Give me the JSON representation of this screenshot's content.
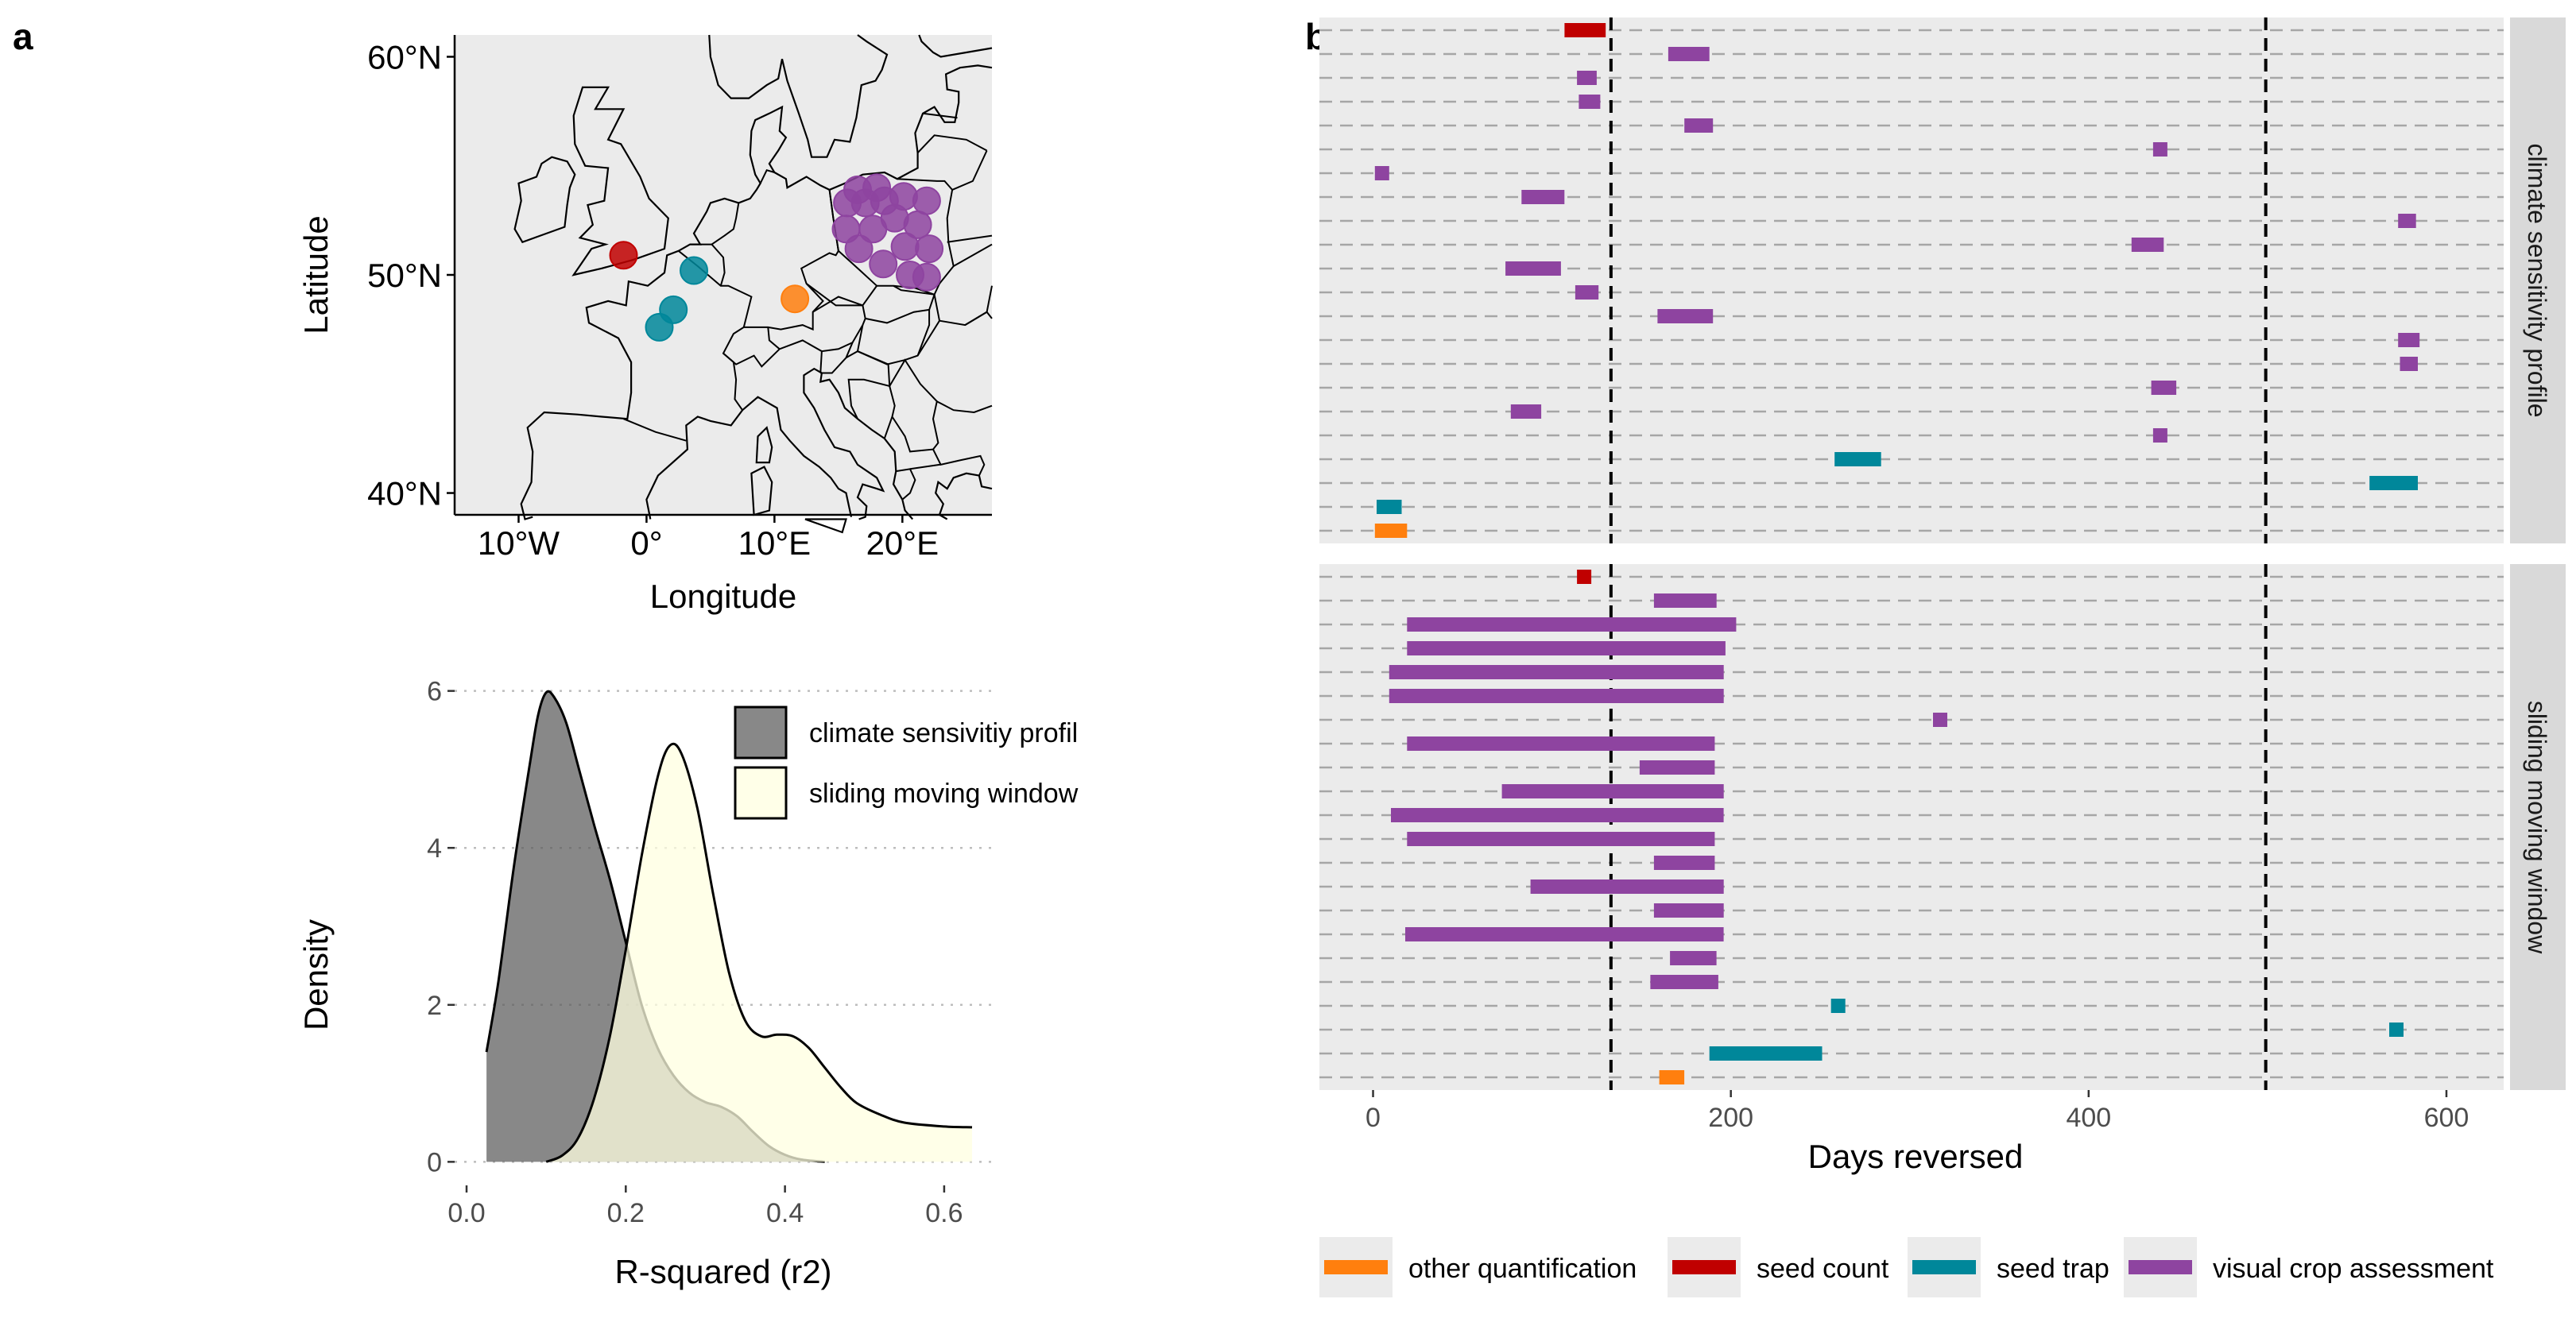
{
  "panels": {
    "a": "a",
    "b": "b"
  },
  "chart_data": [
    {
      "type": "scatter",
      "subtype": "map",
      "xlabel": "Longitude",
      "ylabel": "Latitude",
      "xlim": [
        -15,
        27
      ],
      "ylim": [
        39,
        61
      ],
      "xticks": [
        "10°W",
        "0°",
        "10°E",
        "20°E"
      ],
      "xtick_values": [
        -10,
        0,
        10,
        20
      ],
      "yticks": [
        "40°N",
        "50°N",
        "60°N"
      ],
      "ytick_values": [
        40,
        50,
        60
      ],
      "background_color": "#ebebeb",
      "points": [
        {
          "lon": -1.8,
          "lat": 50.9,
          "type": "seed count"
        },
        {
          "lon": 3.7,
          "lat": 50.2,
          "type": "seed trap"
        },
        {
          "lon": 2.1,
          "lat": 48.4,
          "type": "seed trap"
        },
        {
          "lon": 1.0,
          "lat": 47.6,
          "type": "seed trap"
        },
        {
          "lon": 11.6,
          "lat": 48.9,
          "type": "other quantification"
        },
        {
          "lon": 16.5,
          "lat": 53.9,
          "type": "visual crop assessment"
        },
        {
          "lon": 18.0,
          "lat": 54.0,
          "type": "visual crop assessment"
        },
        {
          "lon": 15.7,
          "lat": 53.3,
          "type": "visual crop assessment"
        },
        {
          "lon": 17.1,
          "lat": 53.3,
          "type": "visual crop assessment"
        },
        {
          "lon": 18.6,
          "lat": 53.4,
          "type": "visual crop assessment"
        },
        {
          "lon": 20.1,
          "lat": 53.6,
          "type": "visual crop assessment"
        },
        {
          "lon": 21.9,
          "lat": 53.4,
          "type": "visual crop assessment"
        },
        {
          "lon": 15.6,
          "lat": 52.1,
          "type": "visual crop assessment"
        },
        {
          "lon": 17.7,
          "lat": 52.1,
          "type": "visual crop assessment"
        },
        {
          "lon": 16.6,
          "lat": 51.2,
          "type": "visual crop assessment"
        },
        {
          "lon": 19.4,
          "lat": 52.6,
          "type": "visual crop assessment"
        },
        {
          "lon": 21.2,
          "lat": 52.3,
          "type": "visual crop assessment"
        },
        {
          "lon": 20.2,
          "lat": 51.3,
          "type": "visual crop assessment"
        },
        {
          "lon": 22.1,
          "lat": 51.2,
          "type": "visual crop assessment"
        },
        {
          "lon": 18.5,
          "lat": 50.5,
          "type": "visual crop assessment"
        },
        {
          "lon": 20.6,
          "lat": 50.0,
          "type": "visual crop assessment"
        },
        {
          "lon": 21.9,
          "lat": 49.9,
          "type": "visual crop assessment"
        }
      ]
    },
    {
      "type": "area",
      "subtype": "density",
      "xlabel": "R-squared (r2)",
      "ylabel": "Density",
      "xlim": [
        -0.015,
        0.66
      ],
      "ylim": [
        -0.3,
        6.3
      ],
      "xticks": [
        "0.0",
        "0.2",
        "0.4",
        "0.6"
      ],
      "xtick_values": [
        0.0,
        0.2,
        0.4,
        0.6
      ],
      "yticks": [
        "0",
        "2",
        "4",
        "6"
      ],
      "ytick_values": [
        0,
        2,
        4,
        6
      ],
      "legend_position": "top-right",
      "series": [
        {
          "name": "climate sensivitiy profil",
          "color": "#5a5a5a",
          "points": [
            [
              0.025,
              1.4
            ],
            [
              0.04,
              2.3
            ],
            [
              0.06,
              3.8
            ],
            [
              0.08,
              5.1
            ],
            [
              0.09,
              5.7
            ],
            [
              0.1,
              5.98
            ],
            [
              0.11,
              5.92
            ],
            [
              0.125,
              5.6
            ],
            [
              0.14,
              5.05
            ],
            [
              0.16,
              4.3
            ],
            [
              0.18,
              3.6
            ],
            [
              0.2,
              2.8
            ],
            [
              0.22,
              2.0
            ],
            [
              0.24,
              1.45
            ],
            [
              0.26,
              1.1
            ],
            [
              0.28,
              0.88
            ],
            [
              0.3,
              0.76
            ],
            [
              0.32,
              0.7
            ],
            [
              0.34,
              0.58
            ],
            [
              0.36,
              0.38
            ],
            [
              0.38,
              0.2
            ],
            [
              0.4,
              0.09
            ],
            [
              0.42,
              0.03
            ],
            [
              0.45,
              0.0
            ]
          ]
        },
        {
          "name": "sliding moving window",
          "color": "#ffffe0",
          "points": [
            [
              0.1,
              0.0
            ],
            [
              0.12,
              0.08
            ],
            [
              0.14,
              0.3
            ],
            [
              0.16,
              0.8
            ],
            [
              0.18,
              1.6
            ],
            [
              0.2,
              2.7
            ],
            [
              0.22,
              3.9
            ],
            [
              0.24,
              4.9
            ],
            [
              0.255,
              5.3
            ],
            [
              0.27,
              5.2
            ],
            [
              0.29,
              4.5
            ],
            [
              0.31,
              3.4
            ],
            [
              0.33,
              2.4
            ],
            [
              0.35,
              1.8
            ],
            [
              0.37,
              1.6
            ],
            [
              0.39,
              1.62
            ],
            [
              0.41,
              1.6
            ],
            [
              0.43,
              1.45
            ],
            [
              0.45,
              1.2
            ],
            [
              0.47,
              0.95
            ],
            [
              0.49,
              0.75
            ],
            [
              0.52,
              0.6
            ],
            [
              0.55,
              0.5
            ],
            [
              0.6,
              0.45
            ],
            [
              0.635,
              0.44
            ]
          ]
        }
      ]
    },
    {
      "type": "bar",
      "subtype": "range-bars",
      "xlabel": "Days reversed",
      "xlim": [
        -30,
        632
      ],
      "xticks": [
        "0",
        "200",
        "400",
        "600"
      ],
      "xtick_values": [
        0,
        200,
        400,
        600
      ],
      "vlines": [
        133,
        499
      ],
      "rows_per_facet": 22,
      "legend_position": "bottom",
      "legend": [
        {
          "label": "other quantification",
          "color": "#ff7f0e"
        },
        {
          "label": "seed count",
          "color": "#c00000"
        },
        {
          "label": "seed trap",
          "color": "#00879a"
        },
        {
          "label": "visual crop assessment",
          "color": "#8e44a0"
        }
      ],
      "facets": [
        {
          "strip": "climate sensitivity profile",
          "segments": [
            {
              "row": 0,
              "start": 107,
              "end": 130,
              "type": "seed count"
            },
            {
              "row": 1,
              "start": 165,
              "end": 188,
              "type": "visual crop assessment"
            },
            {
              "row": 2,
              "start": 114,
              "end": 125,
              "type": "visual crop assessment"
            },
            {
              "row": 3,
              "start": 115,
              "end": 127,
              "type": "visual crop assessment"
            },
            {
              "row": 4,
              "start": 174,
              "end": 190,
              "type": "visual crop assessment"
            },
            {
              "row": 5,
              "start": 436,
              "end": 444,
              "type": "visual crop assessment"
            },
            {
              "row": 6,
              "start": 1,
              "end": 9,
              "type": "visual crop assessment"
            },
            {
              "row": 7,
              "start": 83,
              "end": 107,
              "type": "visual crop assessment"
            },
            {
              "row": 8,
              "start": 573,
              "end": 583,
              "type": "visual crop assessment"
            },
            {
              "row": 9,
              "start": 424,
              "end": 442,
              "type": "visual crop assessment"
            },
            {
              "row": 10,
              "start": 74,
              "end": 105,
              "type": "visual crop assessment"
            },
            {
              "row": 11,
              "start": 113,
              "end": 126,
              "type": "visual crop assessment"
            },
            {
              "row": 12,
              "start": 159,
              "end": 190,
              "type": "visual crop assessment"
            },
            {
              "row": 13,
              "start": 573,
              "end": 585,
              "type": "visual crop assessment"
            },
            {
              "row": 14,
              "start": 574,
              "end": 584,
              "type": "visual crop assessment"
            },
            {
              "row": 15,
              "start": 435,
              "end": 449,
              "type": "visual crop assessment"
            },
            {
              "row": 16,
              "start": 77,
              "end": 94,
              "type": "visual crop assessment"
            },
            {
              "row": 17,
              "start": 436,
              "end": 444,
              "type": "visual crop assessment"
            },
            {
              "row": 18,
              "start": 258,
              "end": 284,
              "type": "seed trap"
            },
            {
              "row": 19,
              "start": 557,
              "end": 584,
              "type": "seed trap"
            },
            {
              "row": 20,
              "start": 2,
              "end": 16,
              "type": "seed trap"
            },
            {
              "row": 21,
              "start": 1,
              "end": 19,
              "type": "other quantification"
            }
          ]
        },
        {
          "strip": "sliding moving window",
          "segments": [
            {
              "row": 0,
              "start": 114,
              "end": 122,
              "type": "seed count"
            },
            {
              "row": 1,
              "start": 157,
              "end": 192,
              "type": "visual crop assessment"
            },
            {
              "row": 2,
              "start": 19,
              "end": 203,
              "type": "visual crop assessment"
            },
            {
              "row": 3,
              "start": 19,
              "end": 197,
              "type": "visual crop assessment"
            },
            {
              "row": 4,
              "start": 9,
              "end": 196,
              "type": "visual crop assessment"
            },
            {
              "row": 5,
              "start": 9,
              "end": 196,
              "type": "visual crop assessment"
            },
            {
              "row": 6,
              "start": 313,
              "end": 321,
              "type": "visual crop assessment"
            },
            {
              "row": 7,
              "start": 19,
              "end": 191,
              "type": "visual crop assessment"
            },
            {
              "row": 8,
              "start": 149,
              "end": 191,
              "type": "visual crop assessment"
            },
            {
              "row": 9,
              "start": 72,
              "end": 196,
              "type": "visual crop assessment"
            },
            {
              "row": 10,
              "start": 10,
              "end": 196,
              "type": "visual crop assessment"
            },
            {
              "row": 11,
              "start": 19,
              "end": 191,
              "type": "visual crop assessment"
            },
            {
              "row": 12,
              "start": 157,
              "end": 191,
              "type": "visual crop assessment"
            },
            {
              "row": 13,
              "start": 88,
              "end": 196,
              "type": "visual crop assessment"
            },
            {
              "row": 14,
              "start": 157,
              "end": 196,
              "type": "visual crop assessment"
            },
            {
              "row": 15,
              "start": 18,
              "end": 196,
              "type": "visual crop assessment"
            },
            {
              "row": 16,
              "start": 166,
              "end": 192,
              "type": "visual crop assessment"
            },
            {
              "row": 17,
              "start": 155,
              "end": 193,
              "type": "visual crop assessment"
            },
            {
              "row": 18,
              "start": 256,
              "end": 264,
              "type": "seed trap"
            },
            {
              "row": 19,
              "start": 568,
              "end": 576,
              "type": "seed trap"
            },
            {
              "row": 20,
              "start": 188,
              "end": 251,
              "type": "seed trap"
            },
            {
              "row": 21,
              "start": 160,
              "end": 174,
              "type": "other quantification"
            }
          ]
        }
      ]
    }
  ]
}
